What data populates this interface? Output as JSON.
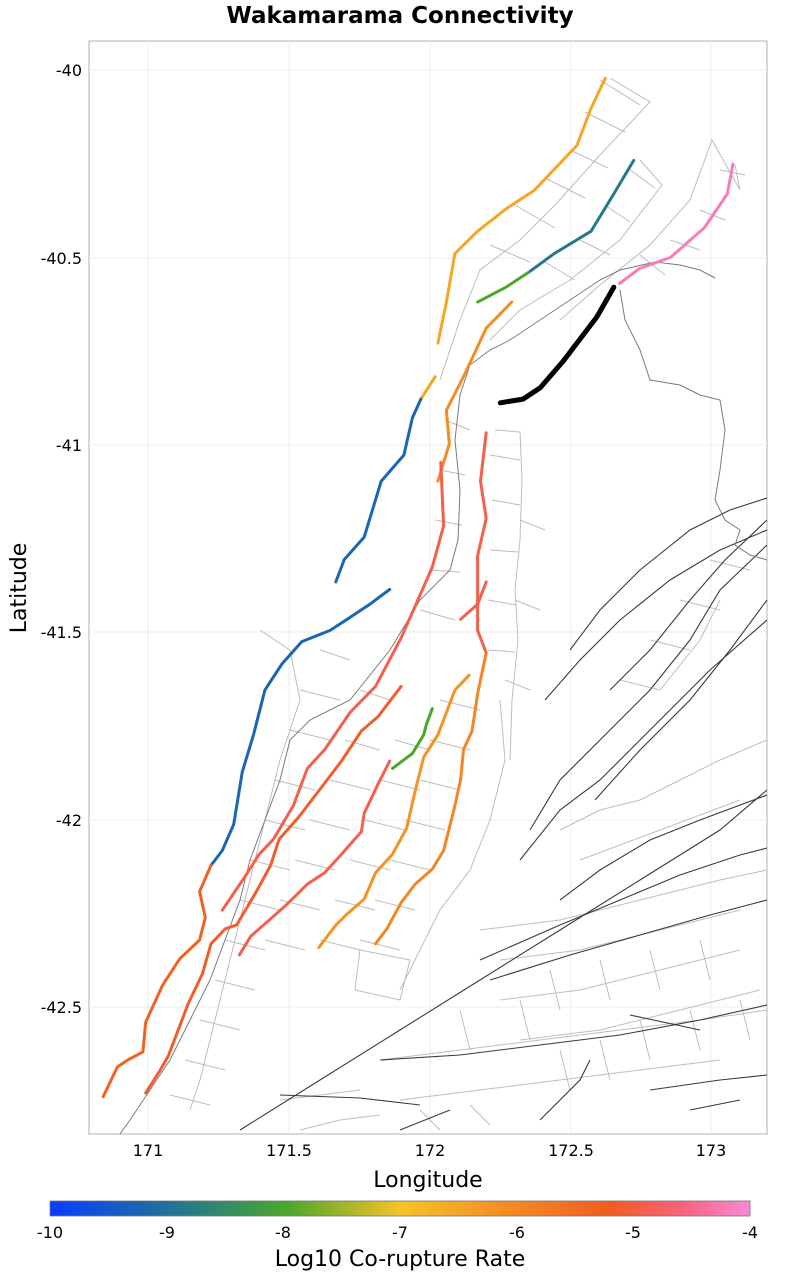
{
  "title": "Wakamarama Connectivity",
  "x_axis": {
    "label": "Longitude",
    "ticks": [
      "171",
      "171.5",
      "172",
      "172.5",
      "173"
    ],
    "range": [
      170.83,
      173.22
    ]
  },
  "y_axis": {
    "label": "Latitude",
    "ticks": [
      "-40",
      "-40.5",
      "-41",
      "-41.5",
      "-42",
      "-42.5"
    ],
    "range": [
      -42.85,
      -39.92
    ]
  },
  "colorbar": {
    "label": "Log10 Co-rupture Rate",
    "ticks": [
      "-10",
      "-9",
      "-8",
      "-7",
      "-6",
      "-5",
      "-4"
    ],
    "range": [
      -10,
      -4
    ],
    "stops": [
      "#0a3cff",
      "#1e6f9f",
      "#4ba82a",
      "#f6c229",
      "#f38a24",
      "#f25c22",
      "#f8627a",
      "#f78ad8"
    ]
  },
  "highlight": {
    "name": "Wakamarama",
    "color": "#000000",
    "trace": [
      [
        172.28,
        -40.89
      ],
      [
        172.36,
        -40.88
      ],
      [
        172.42,
        -40.85
      ],
      [
        172.5,
        -40.78
      ],
      [
        172.56,
        -40.72
      ],
      [
        172.62,
        -40.66
      ],
      [
        172.68,
        -40.58
      ]
    ]
  },
  "sections": [
    {
      "value": -6.6,
      "trace": [
        [
          172.32,
          -40.62
        ],
        [
          172.23,
          -40.69
        ],
        [
          172.15,
          -40.82
        ],
        [
          172.09,
          -40.91
        ],
        [
          172.1,
          -41.0
        ],
        [
          172.06,
          -41.1
        ]
      ]
    },
    {
      "value": -7.0,
      "trace": [
        [
          172.65,
          -40.02
        ],
        [
          172.6,
          -40.1
        ],
        [
          172.55,
          -40.2
        ],
        [
          172.4,
          -40.32
        ],
        [
          172.3,
          -40.37
        ],
        [
          172.2,
          -40.43
        ],
        [
          172.12,
          -40.49
        ],
        [
          172.09,
          -40.62
        ],
        [
          172.06,
          -40.73
        ]
      ]
    },
    {
      "value": -9.0,
      "trace": [
        [
          172.75,
          -40.24
        ],
        [
          172.68,
          -40.33
        ],
        [
          172.6,
          -40.43
        ],
        [
          172.47,
          -40.49
        ],
        [
          172.38,
          -40.54
        ]
      ]
    },
    {
      "value": -8.3,
      "trace": [
        [
          172.38,
          -40.54
        ],
        [
          172.3,
          -40.58
        ],
        [
          172.2,
          -40.62
        ]
      ]
    },
    {
      "value": -4.3,
      "trace": [
        [
          173.1,
          -40.25
        ],
        [
          173.08,
          -40.33
        ],
        [
          173.0,
          -40.42
        ],
        [
          172.88,
          -40.5
        ],
        [
          172.77,
          -40.53
        ],
        [
          172.7,
          -40.57
        ]
      ]
    },
    {
      "value": -7.0,
      "trace": [
        [
          172.05,
          -40.82
        ],
        [
          172.0,
          -40.88
        ]
      ]
    },
    {
      "value": -9.3,
      "trace": [
        [
          172.0,
          -40.88
        ],
        [
          171.97,
          -40.93
        ],
        [
          171.94,
          -41.03
        ],
        [
          171.86,
          -41.1
        ],
        [
          171.8,
          -41.25
        ],
        [
          171.73,
          -41.31
        ],
        [
          171.7,
          -41.37
        ]
      ]
    },
    {
      "value": -9.3,
      "trace": [
        [
          171.89,
          -41.39
        ],
        [
          171.82,
          -41.43
        ],
        [
          171.74,
          -41.47
        ],
        [
          171.68,
          -41.5
        ],
        [
          171.58,
          -41.53
        ],
        [
          171.51,
          -41.59
        ],
        [
          171.45,
          -41.66
        ],
        [
          171.41,
          -41.78
        ],
        [
          171.37,
          -41.88
        ],
        [
          171.34,
          -42.02
        ],
        [
          171.3,
          -42.09
        ],
        [
          171.26,
          -42.13
        ]
      ]
    },
    {
      "value": -5.8,
      "trace": [
        [
          171.26,
          -42.13
        ],
        [
          171.22,
          -42.2
        ],
        [
          171.24,
          -42.27
        ],
        [
          171.22,
          -42.33
        ],
        [
          171.15,
          -42.38
        ],
        [
          171.09,
          -42.45
        ],
        [
          171.03,
          -42.55
        ],
        [
          171.02,
          -42.63
        ],
        [
          170.97,
          -42.65
        ],
        [
          170.93,
          -42.67
        ],
        [
          170.88,
          -42.75
        ]
      ]
    },
    {
      "value": -5.3,
      "trace": [
        [
          172.07,
          -41.05
        ],
        [
          172.08,
          -41.22
        ],
        [
          172.04,
          -41.33
        ],
        [
          172.0,
          -41.4
        ],
        [
          171.93,
          -41.52
        ],
        [
          171.84,
          -41.65
        ],
        [
          171.75,
          -41.72
        ],
        [
          171.66,
          -41.82
        ],
        [
          171.6,
          -41.87
        ],
        [
          171.55,
          -41.97
        ],
        [
          171.48,
          -42.06
        ],
        [
          171.43,
          -42.1
        ],
        [
          171.38,
          -42.16
        ],
        [
          171.3,
          -42.25
        ]
      ]
    },
    {
      "value": -5.3,
      "trace": [
        [
          172.23,
          -40.97
        ],
        [
          172.21,
          -41.1
        ],
        [
          172.23,
          -41.2
        ],
        [
          172.2,
          -41.3
        ],
        [
          172.2,
          -41.37
        ],
        [
          172.2,
          -41.44
        ],
        [
          172.2,
          -41.5
        ],
        [
          172.23,
          -41.56
        ]
      ]
    },
    {
      "value": -5.3,
      "trace": [
        [
          172.23,
          -41.37
        ],
        [
          172.2,
          -41.43
        ],
        [
          172.14,
          -41.47
        ]
      ]
    },
    {
      "value": -5.6,
      "trace": [
        [
          171.93,
          -41.65
        ],
        [
          171.85,
          -41.73
        ],
        [
          171.79,
          -41.77
        ],
        [
          171.72,
          -41.85
        ],
        [
          171.65,
          -41.92
        ],
        [
          171.57,
          -42.0
        ],
        [
          171.5,
          -42.06
        ],
        [
          171.47,
          -42.13
        ],
        [
          171.42,
          -42.2
        ],
        [
          171.35,
          -42.29
        ],
        [
          171.31,
          -42.3
        ],
        [
          171.26,
          -42.34
        ],
        [
          171.23,
          -42.42
        ],
        [
          171.18,
          -42.5
        ],
        [
          171.15,
          -42.56
        ],
        [
          171.11,
          -42.64
        ],
        [
          171.08,
          -42.68
        ],
        [
          171.03,
          -42.74
        ]
      ]
    },
    {
      "value": -6.5,
      "trace": [
        [
          172.23,
          -41.56
        ],
        [
          172.2,
          -41.67
        ],
        [
          172.18,
          -41.77
        ],
        [
          172.15,
          -41.82
        ],
        [
          172.14,
          -41.9
        ],
        [
          172.12,
          -41.97
        ],
        [
          172.1,
          -42.03
        ],
        [
          172.08,
          -42.09
        ],
        [
          172.04,
          -42.14
        ],
        [
          171.98,
          -42.18
        ],
        [
          171.93,
          -42.23
        ],
        [
          171.88,
          -42.3
        ],
        [
          171.84,
          -42.34
        ]
      ]
    },
    {
      "value": -6.7,
      "trace": [
        [
          172.17,
          -41.62
        ],
        [
          172.12,
          -41.66
        ],
        [
          172.09,
          -41.72
        ],
        [
          172.06,
          -41.78
        ],
        [
          172.01,
          -41.84
        ],
        [
          171.98,
          -41.93
        ],
        [
          171.95,
          -42.03
        ],
        [
          171.9,
          -42.1
        ],
        [
          171.84,
          -42.15
        ],
        [
          171.8,
          -42.22
        ],
        [
          171.74,
          -42.26
        ],
        [
          171.7,
          -42.29
        ],
        [
          171.64,
          -42.35
        ]
      ]
    },
    {
      "value": -5.3,
      "trace": [
        [
          171.89,
          -41.85
        ],
        [
          171.85,
          -41.91
        ],
        [
          171.8,
          -41.99
        ],
        [
          171.79,
          -42.04
        ],
        [
          171.72,
          -42.1
        ],
        [
          171.66,
          -42.15
        ],
        [
          171.6,
          -42.18
        ],
        [
          171.56,
          -42.21
        ],
        [
          171.52,
          -42.24
        ],
        [
          171.46,
          -42.28
        ],
        [
          171.4,
          -42.32
        ],
        [
          171.36,
          -42.37
        ]
      ]
    },
    {
      "value": -8.3,
      "trace": [
        [
          172.04,
          -41.71
        ],
        [
          172.02,
          -41.75
        ],
        [
          172.01,
          -41.78
        ],
        [
          171.97,
          -41.83
        ],
        [
          171.9,
          -41.87
        ]
      ]
    }
  ]
}
